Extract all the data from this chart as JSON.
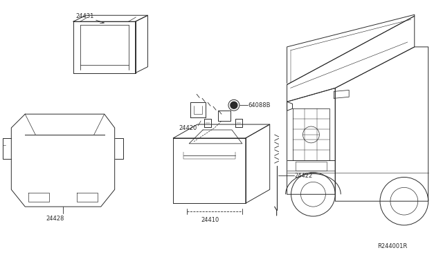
{
  "bg_color": "#ffffff",
  "line_color": "#2a2a2a",
  "label_color": "#2a2a2a",
  "fig_width": 6.4,
  "fig_height": 3.72,
  "dpi": 100,
  "watermark": "R244001R",
  "label_fontsize": 6.0
}
